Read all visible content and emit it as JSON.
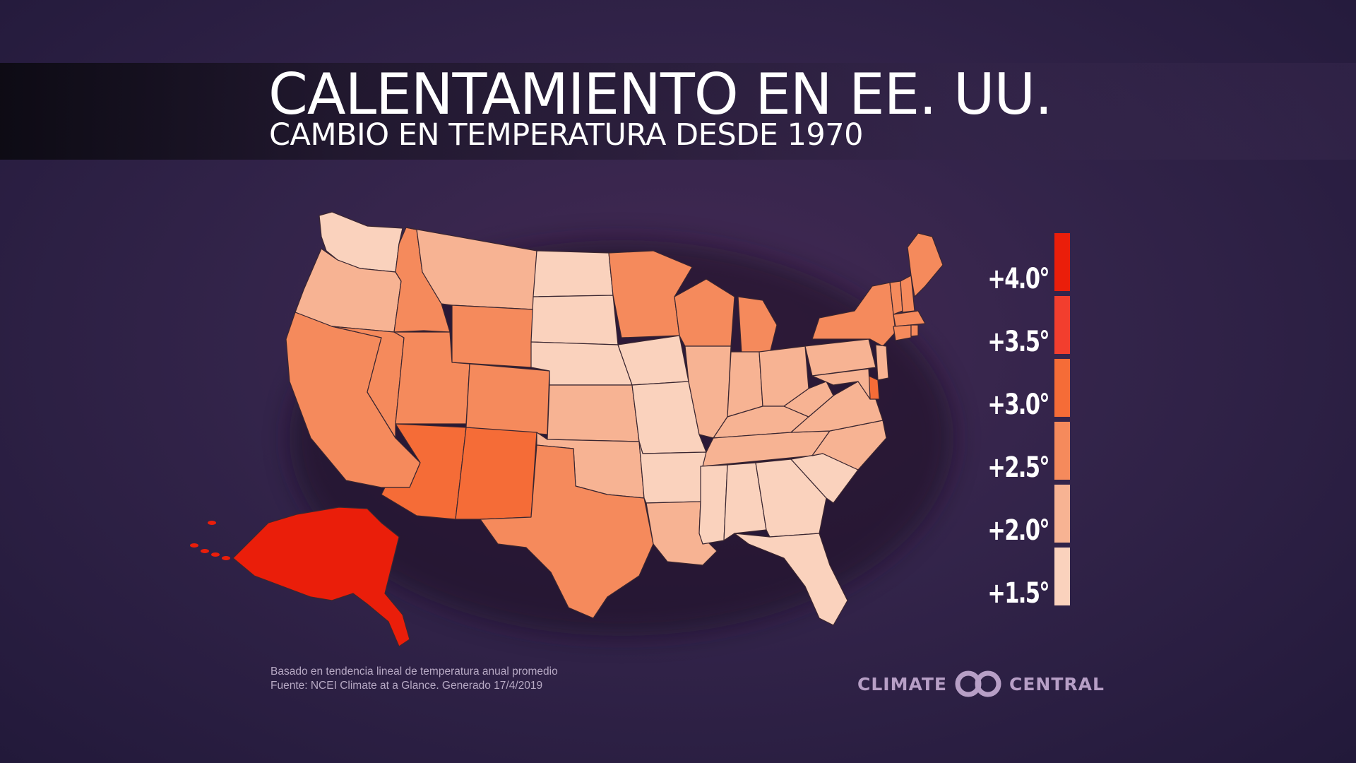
{
  "header": {
    "title": "CALENTAMIENTO EN EE. UU.",
    "subtitle": "CAMBIO EN TEMPERATURA DESDE 1970"
  },
  "colors": {
    "c15": "#fad2bd",
    "c20": "#f7b393",
    "c25": "#f58a5c",
    "c30": "#f56c37",
    "c35": "#f23e2e",
    "c40": "#ea1e0a",
    "border": "#3a2630"
  },
  "legend": {
    "items": [
      {
        "label": "+4.0°",
        "color": "#ea1e0a"
      },
      {
        "label": "+3.5°",
        "color": "#f23e2e"
      },
      {
        "label": "+3.0°",
        "color": "#f56c37"
      },
      {
        "label": "+2.5°",
        "color": "#f58a5c"
      },
      {
        "label": "+2.0°",
        "color": "#f7b393"
      },
      {
        "label": "+1.5°",
        "color": "#fad2bd"
      }
    ]
  },
  "map_data": {
    "states": [
      {
        "name": "Washington",
        "value": 1.5
      },
      {
        "name": "Oregon",
        "value": 2.0
      },
      {
        "name": "California",
        "value": 2.5
      },
      {
        "name": "Idaho",
        "value": 2.5
      },
      {
        "name": "Nevada",
        "value": 2.5
      },
      {
        "name": "Montana",
        "value": 2.0
      },
      {
        "name": "Wyoming",
        "value": 2.5
      },
      {
        "name": "Utah",
        "value": 2.5
      },
      {
        "name": "Colorado",
        "value": 2.5
      },
      {
        "name": "Arizona",
        "value": 3.0
      },
      {
        "name": "New Mexico",
        "value": 3.0
      },
      {
        "name": "North Dakota",
        "value": 1.5
      },
      {
        "name": "South Dakota",
        "value": 1.5
      },
      {
        "name": "Nebraska",
        "value": 1.5
      },
      {
        "name": "Kansas",
        "value": 2.0
      },
      {
        "name": "Oklahoma",
        "value": 2.0
      },
      {
        "name": "Texas",
        "value": 2.5
      },
      {
        "name": "Minnesota",
        "value": 2.5
      },
      {
        "name": "Iowa",
        "value": 1.5
      },
      {
        "name": "Missouri",
        "value": 1.5
      },
      {
        "name": "Arkansas",
        "value": 1.5
      },
      {
        "name": "Louisiana",
        "value": 2.0
      },
      {
        "name": "Wisconsin",
        "value": 2.5
      },
      {
        "name": "Illinois",
        "value": 2.0
      },
      {
        "name": "Michigan",
        "value": 2.5
      },
      {
        "name": "Indiana",
        "value": 2.0
      },
      {
        "name": "Ohio",
        "value": 2.0
      },
      {
        "name": "Kentucky",
        "value": 2.0
      },
      {
        "name": "Tennessee",
        "value": 2.0
      },
      {
        "name": "Mississippi",
        "value": 1.5
      },
      {
        "name": "Alabama",
        "value": 1.5
      },
      {
        "name": "Georgia",
        "value": 1.5
      },
      {
        "name": "Florida",
        "value": 1.5
      },
      {
        "name": "South Carolina",
        "value": 1.5
      },
      {
        "name": "North Carolina",
        "value": 2.0
      },
      {
        "name": "Virginia",
        "value": 2.0
      },
      {
        "name": "West Virginia",
        "value": 2.0
      },
      {
        "name": "Pennsylvania",
        "value": 2.0
      },
      {
        "name": "New York",
        "value": 2.5
      },
      {
        "name": "New Jersey",
        "value": 2.0
      },
      {
        "name": "Delaware",
        "value": 3.0
      },
      {
        "name": "Maryland",
        "value": 2.0
      },
      {
        "name": "Vermont",
        "value": 2.5
      },
      {
        "name": "New Hampshire",
        "value": 2.5
      },
      {
        "name": "Maine",
        "value": 2.5
      },
      {
        "name": "Massachusetts",
        "value": 2.5
      },
      {
        "name": "Connecticut",
        "value": 2.5
      },
      {
        "name": "Rhode Island",
        "value": 2.5
      },
      {
        "name": "Alaska",
        "value": 4.0
      }
    ]
  },
  "footnote": {
    "line1": "Basado en tendencia lineal de temperatura anual promedio",
    "line2": "Fuente: NCEI Climate at a Glance. Generado 17/4/2019"
  },
  "logo": {
    "left": "CLIMATE",
    "right": "CENTRAL",
    "color": "#b79fc6"
  }
}
